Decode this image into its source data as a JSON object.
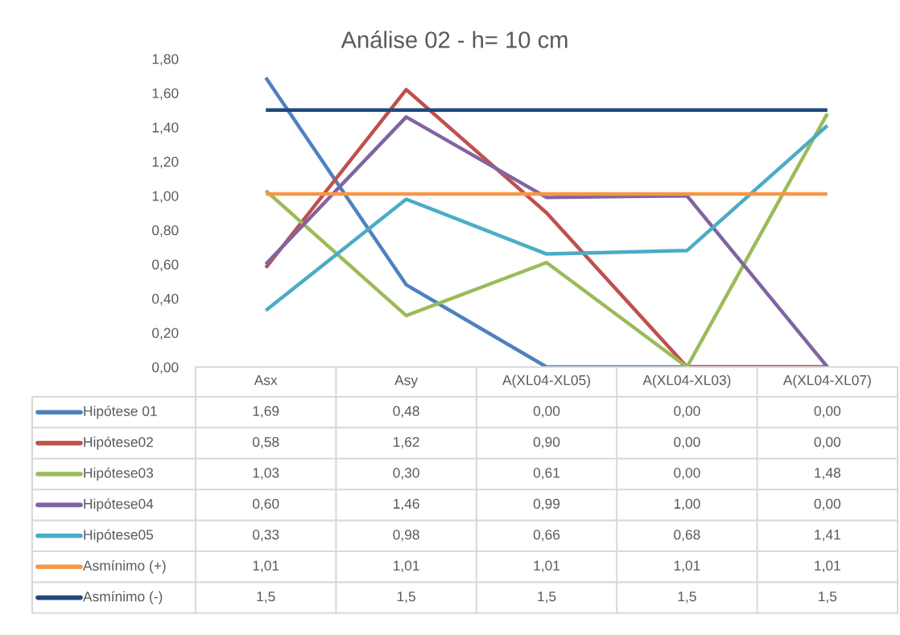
{
  "chart_data": {
    "type": "line",
    "title": "Análise 02 - h= 10 cm",
    "categories": [
      "Asx",
      "Asy",
      "A(XL04-XL05)",
      "A(XL04-XL03)",
      "A(XL04-XL07)"
    ],
    "ylim": [
      0,
      1.8
    ],
    "yticks": [
      {
        "value": 0,
        "label": "0,00"
      },
      {
        "value": 0.2,
        "label": "0,20"
      },
      {
        "value": 0.4,
        "label": "0,40"
      },
      {
        "value": 0.6,
        "label": "0,60"
      },
      {
        "value": 0.8,
        "label": "0,80"
      },
      {
        "value": 1.0,
        "label": "1,00"
      },
      {
        "value": 1.2,
        "label": "1,20"
      },
      {
        "value": 1.4,
        "label": "1,40"
      },
      {
        "value": 1.6,
        "label": "1,60"
      },
      {
        "value": 1.8,
        "label": "1,80"
      }
    ],
    "grid": false,
    "legend": "bottom",
    "series": [
      {
        "name": "Hipótese 01",
        "color": "#4f81bd",
        "values": [
          1.69,
          0.48,
          0.0,
          0.0,
          0.0
        ],
        "value_labels": [
          "1,69",
          "0,48",
          "0,00",
          "0,00",
          "0,00"
        ]
      },
      {
        "name": "Hipótese02",
        "color": "#c0504d",
        "values": [
          0.58,
          1.62,
          0.9,
          0.0,
          0.0
        ],
        "value_labels": [
          "0,58",
          "1,62",
          "0,90",
          "0,00",
          "0,00"
        ]
      },
      {
        "name": "Hipótese03",
        "color": "#9bbb59",
        "values": [
          1.03,
          0.3,
          0.61,
          0.0,
          1.48
        ],
        "value_labels": [
          "1,03",
          "0,30",
          "0,61",
          "0,00",
          "1,48"
        ]
      },
      {
        "name": "Hipótese04",
        "color": "#8064a2",
        "values": [
          0.6,
          1.46,
          0.99,
          1.0,
          0.0
        ],
        "value_labels": [
          "0,60",
          "1,46",
          "0,99",
          "1,00",
          "0,00"
        ]
      },
      {
        "name": "Hipótese05",
        "color": "#4bacc6",
        "values": [
          0.33,
          0.98,
          0.66,
          0.68,
          1.41
        ],
        "value_labels": [
          "0,33",
          "0,98",
          "0,66",
          "0,68",
          "1,41"
        ]
      },
      {
        "name": "Asmínimo (+)",
        "color": "#f79646",
        "values": [
          1.01,
          1.01,
          1.01,
          1.01,
          1.01
        ],
        "value_labels": [
          "1,01",
          "1,01",
          "1,01",
          "1,01",
          "1,01"
        ]
      },
      {
        "name": "Asmínimo (-)",
        "color": "#1f497d",
        "values": [
          1.5,
          1.5,
          1.5,
          1.5,
          1.5
        ],
        "value_labels": [
          "1,5",
          "1,5",
          "1,5",
          "1,5",
          "1,5"
        ]
      }
    ]
  }
}
